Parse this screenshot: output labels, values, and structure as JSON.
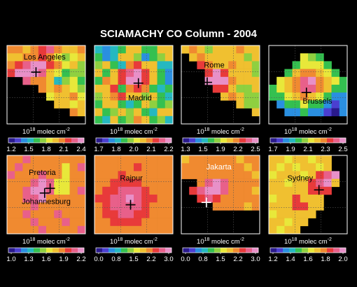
{
  "chart_data": {
    "type": "heatmap",
    "title": "SCIAMACHY CO Column - 2004",
    "unit_base": "10",
    "unit_exp": "18",
    "unit_rest": " molec cm",
    "unit_sup": "-2",
    "colorscale": [
      "#2a1a8c",
      "#4b3fd0",
      "#2a8fe0",
      "#25b8c0",
      "#34c050",
      "#8fd040",
      "#e8e83a",
      "#f0c030",
      "#f08a30",
      "#e83a3a",
      "#e8608a",
      "#e890c8"
    ],
    "panels": [
      {
        "city": "Los Angeles",
        "ticks": [
          "1.2",
          "1.5",
          "1.8",
          "2.1",
          "2.4"
        ],
        "vmin": 1.2,
        "vmax": 2.4,
        "grid": [
          [
            2.0,
            2.0,
            1.9,
            2.0,
            2.1,
            2.2,
            2.0,
            1.9,
            1.9,
            2.0
          ],
          [
            1.9,
            1.9,
            2.0,
            2.0,
            2.1,
            2.0,
            1.8,
            1.7,
            1.8,
            1.9
          ],
          [
            2.0,
            2.1,
            2.2,
            2.4,
            2.4,
            2.1,
            2.0,
            1.8,
            1.9,
            1.7
          ],
          [
            2.1,
            2.3,
            2.4,
            2.4,
            2.2,
            1.9,
            1.8,
            1.6,
            1.7,
            1.7
          ],
          [
            null,
            null,
            2.2,
            2.0,
            2.0,
            1.9,
            1.5,
            1.7,
            1.8,
            1.6
          ],
          [
            null,
            null,
            null,
            null,
            2.0,
            1.9,
            2.0,
            1.9,
            1.8,
            1.7
          ],
          [
            null,
            null,
            null,
            null,
            null,
            1.8,
            1.9,
            1.9,
            2.0,
            1.8
          ],
          [
            null,
            null,
            null,
            null,
            null,
            null,
            1.9,
            1.9,
            1.8,
            1.9
          ],
          [
            null,
            null,
            null,
            null,
            null,
            null,
            null,
            null,
            2.0,
            1.9
          ],
          [
            null,
            null,
            null,
            null,
            null,
            null,
            null,
            null,
            null,
            null
          ]
        ]
      },
      {
        "city": "Madrid",
        "ticks": [
          "1.7",
          "1.8",
          "2.0",
          "2.1",
          "2.2"
        ],
        "vmin": 1.7,
        "vmax": 2.2,
        "grid": [
          [
            1.85,
            1.8,
            1.85,
            1.9,
            2.0,
            2.0,
            1.9,
            1.9,
            2.0,
            2.0
          ],
          [
            1.9,
            1.8,
            1.85,
            2.0,
            2.0,
            1.95,
            1.8,
            1.9,
            1.95,
            2.0
          ],
          [
            1.95,
            2.0,
            1.9,
            1.85,
            2.05,
            2.1,
            2.0,
            2.0,
            1.85,
            1.85
          ],
          [
            2.0,
            1.9,
            2.0,
            2.1,
            2.15,
            2.2,
            2.1,
            2.0,
            1.9,
            1.8
          ],
          [
            1.9,
            2.05,
            2.0,
            2.1,
            2.2,
            2.2,
            2.1,
            2.0,
            1.9,
            1.8
          ],
          [
            2.0,
            2.0,
            2.1,
            1.9,
            2.05,
            2.1,
            2.05,
            1.9,
            1.85,
            1.9
          ],
          [
            1.95,
            2.0,
            2.05,
            2.1,
            2.0,
            2.0,
            1.95,
            2.0,
            1.9,
            1.85
          ],
          [
            1.9,
            2.0,
            2.0,
            1.9,
            1.85,
            1.9,
            2.0,
            1.95,
            1.9,
            1.95
          ],
          [
            2.0,
            1.9,
            1.95,
            2.0,
            1.95,
            2.0,
            1.9,
            1.85,
            2.0,
            2.0
          ],
          [
            1.9,
            1.85,
            2.0,
            1.9,
            1.95,
            2.05,
            2.0,
            1.9,
            1.95,
            1.85
          ]
        ]
      },
      {
        "city": "Rome",
        "ticks": [
          "1.3",
          "1.5",
          "1.9",
          "2.2",
          "2.5"
        ],
        "vmin": 1.3,
        "vmax": 2.5,
        "grid": [
          [
            2.0,
            2.1,
            2.0,
            1.9,
            2.0,
            2.0,
            2.0,
            2.1,
            2.0,
            2.0
          ],
          [
            null,
            2.0,
            2.1,
            2.0,
            2.0,
            2.0,
            2.0,
            2.0,
            1.9,
            2.0
          ],
          [
            null,
            null,
            2.2,
            2.1,
            2.0,
            2.0,
            2.1,
            2.0,
            2.0,
            1.9
          ],
          [
            null,
            null,
            null,
            2.3,
            2.4,
            2.2,
            2.0,
            2.0,
            2.0,
            1.9
          ],
          [
            null,
            null,
            null,
            2.5,
            2.5,
            2.4,
            2.1,
            2.0,
            2.0,
            2.0
          ],
          [
            null,
            null,
            null,
            null,
            2.3,
            2.3,
            2.0,
            1.9,
            1.9,
            2.0
          ],
          [
            null,
            null,
            null,
            null,
            null,
            2.0,
            2.1,
            2.0,
            1.8,
            1.9
          ],
          [
            null,
            null,
            null,
            null,
            null,
            null,
            null,
            2.0,
            1.9,
            1.9
          ],
          [
            null,
            null,
            null,
            null,
            null,
            null,
            null,
            null,
            null,
            2.0
          ],
          [
            null,
            null,
            null,
            null,
            null,
            null,
            null,
            null,
            null,
            null
          ]
        ]
      },
      {
        "city": "Brussels",
        "ticks": [
          "1.7",
          "1.9",
          "2.1",
          "2.3",
          "2.5"
        ],
        "vmin": 1.7,
        "vmax": 2.5,
        "grid": [
          [
            null,
            null,
            null,
            null,
            null,
            null,
            null,
            null,
            null,
            null
          ],
          [
            null,
            null,
            null,
            null,
            2.1,
            2.05,
            2.0,
            null,
            null,
            null
          ],
          [
            null,
            null,
            null,
            2.0,
            2.1,
            2.1,
            2.1,
            2.0,
            null,
            null
          ],
          [
            null,
            null,
            2.0,
            2.2,
            2.3,
            2.3,
            2.2,
            2.1,
            2.0,
            null
          ],
          [
            null,
            2.1,
            2.2,
            2.3,
            2.4,
            2.5,
            2.3,
            2.2,
            2.1,
            2.0
          ],
          [
            2.0,
            2.1,
            2.2,
            2.3,
            2.4,
            2.4,
            2.3,
            2.2,
            2.0,
            2.0
          ],
          [
            2.0,
            2.0,
            2.1,
            2.2,
            2.3,
            2.2,
            2.1,
            2.0,
            1.9,
            1.9
          ],
          [
            null,
            1.9,
            2.0,
            2.0,
            2.1,
            2.0,
            2.0,
            1.9,
            1.8,
            1.9
          ],
          [
            null,
            null,
            1.9,
            1.9,
            2.0,
            1.9,
            1.9,
            1.8,
            1.7,
            1.9
          ],
          [
            null,
            null,
            null,
            null,
            null,
            null,
            null,
            null,
            null,
            null
          ]
        ]
      },
      {
        "city": "Pretoria",
        "city2": "Johannesburg",
        "ticks": [
          "1.0",
          "1.3",
          "1.6",
          "1.9",
          "2.2"
        ],
        "vmin": 1.0,
        "vmax": 2.2,
        "grid": [
          [
            1.9,
            1.9,
            2.0,
            1.9,
            1.8,
            1.9,
            1.9,
            1.8,
            1.9,
            1.9
          ],
          [
            1.9,
            2.0,
            1.9,
            1.8,
            1.9,
            1.9,
            1.8,
            1.7,
            1.9,
            2.0
          ],
          [
            2.0,
            1.9,
            1.8,
            1.9,
            2.0,
            1.9,
            1.8,
            1.7,
            1.8,
            1.9
          ],
          [
            1.9,
            1.8,
            1.9,
            2.0,
            2.1,
            2.0,
            1.7,
            1.6,
            1.8,
            1.9
          ],
          [
            1.8,
            1.9,
            2.0,
            2.1,
            2.2,
            2.0,
            1.7,
            1.7,
            1.9,
            2.0
          ],
          [
            1.9,
            1.9,
            2.0,
            2.0,
            2.1,
            1.9,
            1.8,
            1.8,
            1.9,
            1.9
          ],
          [
            1.9,
            1.9,
            1.9,
            2.0,
            1.9,
            1.9,
            1.9,
            1.9,
            1.8,
            1.9
          ],
          [
            1.8,
            1.9,
            2.0,
            1.9,
            1.9,
            1.9,
            2.0,
            1.9,
            1.9,
            1.8
          ],
          [
            1.9,
            1.8,
            1.9,
            2.0,
            1.9,
            1.8,
            1.9,
            2.0,
            1.9,
            1.9
          ],
          [
            1.9,
            1.9,
            1.8,
            1.9,
            2.0,
            1.9,
            1.9,
            1.8,
            1.9,
            2.0
          ]
        ]
      },
      {
        "city": "Rajpur",
        "ticks": [
          "0.0",
          "0.8",
          "1.5",
          "2.2",
          "3.0"
        ],
        "vmin": 0.0,
        "vmax": 3.0,
        "grid": [
          [
            2.1,
            2.2,
            2.0,
            2.1,
            2.2,
            2.1,
            2.0,
            2.1,
            2.2,
            2.1
          ],
          [
            2.0,
            2.1,
            2.2,
            2.1,
            2.2,
            2.3,
            2.1,
            2.0,
            2.1,
            2.0
          ],
          [
            2.1,
            2.1,
            2.2,
            2.3,
            2.2,
            2.2,
            2.2,
            2.1,
            2.0,
            2.1
          ],
          [
            2.2,
            2.2,
            2.3,
            2.4,
            2.4,
            2.3,
            2.2,
            2.1,
            2.1,
            2.0
          ],
          [
            2.2,
            2.3,
            2.4,
            2.6,
            2.7,
            2.5,
            2.3,
            2.2,
            2.1,
            2.1
          ],
          [
            2.3,
            2.4,
            2.5,
            2.7,
            2.8,
            2.6,
            2.4,
            2.3,
            2.2,
            2.1
          ],
          [
            2.2,
            2.3,
            2.5,
            2.6,
            2.6,
            2.5,
            2.4,
            2.2,
            2.2,
            2.1
          ],
          [
            2.2,
            2.3,
            2.4,
            2.5,
            2.5,
            2.4,
            2.3,
            2.2,
            2.1,
            2.1
          ],
          [
            2.1,
            2.2,
            2.3,
            2.3,
            2.3,
            2.3,
            2.2,
            2.2,
            2.1,
            2.0
          ],
          [
            2.1,
            2.1,
            2.2,
            2.2,
            2.2,
            2.2,
            2.1,
            2.1,
            2.0,
            2.0
          ]
        ]
      },
      {
        "city": "Jakarta",
        "ticks": [
          "0.0",
          "0.8",
          "1.5",
          "2.2",
          "3.0"
        ],
        "vmin": 0.0,
        "vmax": 3.0,
        "grid": [
          [
            1.9,
            2.0,
            2.0,
            2.1,
            2.0,
            2.0,
            2.0,
            1.9,
            2.0,
            2.0
          ],
          [
            2.0,
            2.1,
            2.0,
            2.0,
            2.1,
            2.0,
            2.0,
            2.0,
            1.9,
            2.0
          ],
          [
            2.0,
            2.0,
            2.1,
            2.1,
            2.0,
            2.1,
            2.0,
            2.0,
            2.0,
            1.9
          ],
          [
            null,
            null,
            2.2,
            2.6,
            2.8,
            2.5,
            2.2,
            2.1,
            2.0,
            2.0
          ],
          [
            null,
            2.3,
            2.6,
            3.0,
            2.9,
            2.6,
            2.2,
            2.1,
            2.0,
            1.9
          ],
          [
            null,
            null,
            2.4,
            2.5,
            2.4,
            2.2,
            2.1,
            2.0,
            2.0,
            2.0
          ],
          [
            null,
            null,
            null,
            null,
            2.0,
            2.0,
            2.1,
            2.0,
            1.9,
            2.0
          ],
          [
            null,
            null,
            null,
            null,
            null,
            null,
            null,
            null,
            null,
            null
          ],
          [
            null,
            null,
            null,
            null,
            null,
            null,
            null,
            null,
            null,
            null
          ],
          [
            null,
            null,
            null,
            null,
            null,
            null,
            null,
            null,
            null,
            null
          ]
        ]
      },
      {
        "city": "Sydney",
        "ticks": [
          "1.2",
          "1.4",
          "1.6",
          "1.8",
          "2.0"
        ],
        "vmin": 1.2,
        "vmax": 2.0,
        "grid": [
          [
            1.7,
            1.7,
            1.6,
            1.7,
            1.7,
            1.6,
            1.7,
            1.7,
            null,
            null
          ],
          [
            1.7,
            1.6,
            1.7,
            1.6,
            1.7,
            1.7,
            1.6,
            1.7,
            null,
            null
          ],
          [
            1.6,
            1.7,
            1.7,
            1.7,
            1.6,
            1.7,
            1.8,
            1.9,
            2.0,
            null
          ],
          [
            1.7,
            1.7,
            1.6,
            1.7,
            1.7,
            1.8,
            1.9,
            2.0,
            1.7,
            null
          ],
          [
            1.7,
            1.7,
            1.7,
            1.7,
            1.7,
            1.8,
            1.8,
            1.8,
            null,
            null
          ],
          [
            1.6,
            1.7,
            1.7,
            1.8,
            1.7,
            1.7,
            1.7,
            null,
            null,
            null
          ],
          [
            1.7,
            1.7,
            1.7,
            1.8,
            1.8,
            1.7,
            1.7,
            null,
            null,
            null
          ],
          [
            1.6,
            1.7,
            1.7,
            1.7,
            1.7,
            1.7,
            null,
            null,
            null,
            null
          ],
          [
            1.7,
            1.7,
            1.6,
            1.7,
            1.7,
            null,
            null,
            null,
            null,
            null
          ],
          [
            1.7,
            1.6,
            1.7,
            1.7,
            null,
            null,
            null,
            null,
            null,
            null
          ]
        ]
      }
    ]
  }
}
